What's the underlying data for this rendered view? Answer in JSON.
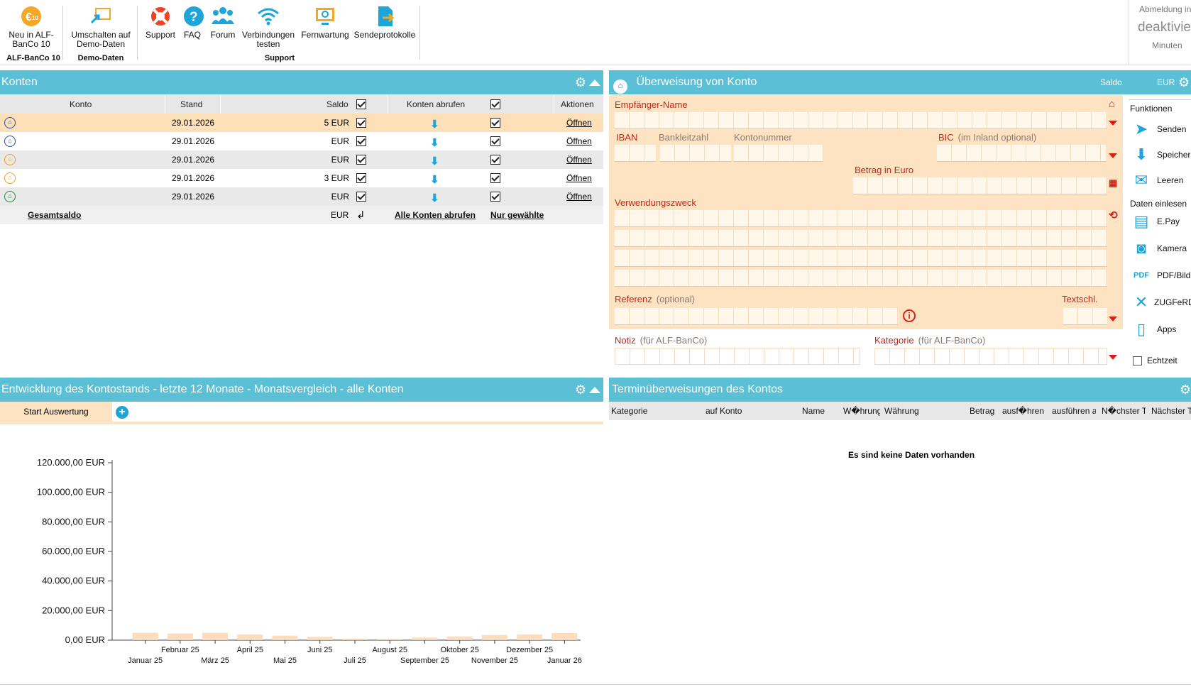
{
  "ribbon": {
    "buttons": [
      {
        "label": "Neu in ALF-BanCo 10",
        "icon": "alf-euro-10-icon"
      },
      {
        "label": "Umschalten auf Demo-Daten",
        "icon": "switch-monitor-icon"
      },
      {
        "label": "Support",
        "icon": "lifebuoy-icon"
      },
      {
        "label": "FAQ",
        "icon": "question-icon"
      },
      {
        "label": "Forum",
        "icon": "people-icon"
      },
      {
        "label": "Verbindungen testen",
        "icon": "wifi-icon"
      },
      {
        "label": "Fernwartung",
        "icon": "remote-monitor-icon"
      },
      {
        "label": "Sendeprotokolle",
        "icon": "document-send-icon"
      }
    ],
    "groups": [
      "ALF-BanCo 10",
      "Demo-Daten",
      "Support"
    ],
    "logout": {
      "line1": "Abmeldung in",
      "line2": "deaktiviert",
      "line3": "Minuten"
    }
  },
  "konten": {
    "title": "Konten",
    "headers": {
      "konto": "Konto",
      "stand": "Stand",
      "saldo": "Saldo",
      "abrufen": "Konten abrufen",
      "aktionen": "Aktionen"
    },
    "rows": [
      {
        "stand": "29.01.2026",
        "saldo": "5 EUR",
        "action": "Öffnen",
        "icon_color": "#2a4fa8",
        "selected": true
      },
      {
        "stand": "29.01.2026",
        "saldo": "EUR",
        "action": "Öffnen",
        "icon_color": "#2a4fa8",
        "selected": false
      },
      {
        "stand": "29.01.2026",
        "saldo": "EUR",
        "action": "Öffnen",
        "icon_color": "#f0a020",
        "selected": false
      },
      {
        "stand": "29.01.2026",
        "saldo": "3 EUR",
        "action": "Öffnen",
        "icon_color": "#f0a020",
        "selected": false
      },
      {
        "stand": "29.01.2026",
        "saldo": "EUR",
        "action": "Öffnen",
        "icon_color": "#1e8a3a",
        "selected": false
      }
    ],
    "footer": {
      "gesamtsaldo": "Gesamtsaldo",
      "saldo": "EUR",
      "alle_abrufen": "Alle Konten abrufen",
      "nur_gewaehlte": "Nur gewählte"
    }
  },
  "ueberweisung": {
    "title": "Überweisung von Konto",
    "header_saldo": "Saldo",
    "header_currency": "EUR",
    "empfaenger": "Empfänger-Name",
    "iban": "IBAN",
    "blz": "Bankleitzahl",
    "kontonummer": "Kontonummer",
    "bic": "BIC",
    "bic_opt": "(im Inland optional)",
    "betrag": "Betrag in Euro",
    "verwendungszweck": "Verwendungszweck",
    "referenz": "Referenz",
    "referenz_opt": "(optional)",
    "textschl": "Textschl.",
    "notiz": "Notiz",
    "notiz_opt": "(für ALF-BanCo)",
    "kategorie": "Kategorie",
    "kategorie_opt": "(für ALF-BanCo)"
  },
  "funktionen": {
    "title": "Funktionen",
    "items": [
      {
        "label": "Senden",
        "icon": "paper-plane-icon"
      },
      {
        "label": "Speicher",
        "icon": "download-icon"
      },
      {
        "label": "Leeren",
        "icon": "eraser-icon"
      }
    ],
    "daten_title": "Daten einlesen",
    "daten_items": [
      {
        "label": "E.Pay",
        "icon": "epay-icon"
      },
      {
        "label": "Kamera",
        "icon": "camera-icon"
      },
      {
        "label": "PDF/Bild",
        "icon": "pdf-image-icon"
      },
      {
        "label": "ZUGFeRD",
        "icon": "zugferd-icon"
      },
      {
        "label": "Apps",
        "icon": "phone-euro-icon"
      }
    ],
    "echtzeit": "Echtzeit"
  },
  "entwicklung": {
    "title": "Entwicklung des Kontostands - letzte 12 Monate - Monatsvergleich - alle Konten",
    "tab": "Start Auswertung"
  },
  "chart_data": {
    "type": "bar",
    "categories": [
      "Januar 25",
      "Februar 25",
      "März 25",
      "April 25",
      "Mai 25",
      "Juni 25",
      "Juli 25",
      "August 25",
      "September 25",
      "Oktober 25",
      "November 25",
      "Dezember 25",
      "Januar 26"
    ],
    "values": [
      5000,
      4500,
      5000,
      3800,
      3000,
      2200,
      1000,
      800,
      1800,
      2500,
      3500,
      3800,
      4800
    ],
    "ylim": [
      0,
      120000
    ],
    "yticks": [
      "0,00 EUR",
      "20.000,00 EUR",
      "40.000,00 EUR",
      "60.000,00 EUR",
      "80.000,00 EUR",
      "100.000,00 EUR",
      "120.000,00 EUR"
    ],
    "bar_color": "#fbd8b0"
  },
  "termin": {
    "title": "Terminüberweisungen des Kontos",
    "headers": [
      "Kategorie",
      "auf Konto",
      "Name",
      "W�hrung",
      "Währung",
      "Betrag",
      "ausf�hren",
      "ausführen a",
      "N�chster T",
      "Nächster T"
    ],
    "empty": "Es sind keine Daten vorhanden"
  }
}
